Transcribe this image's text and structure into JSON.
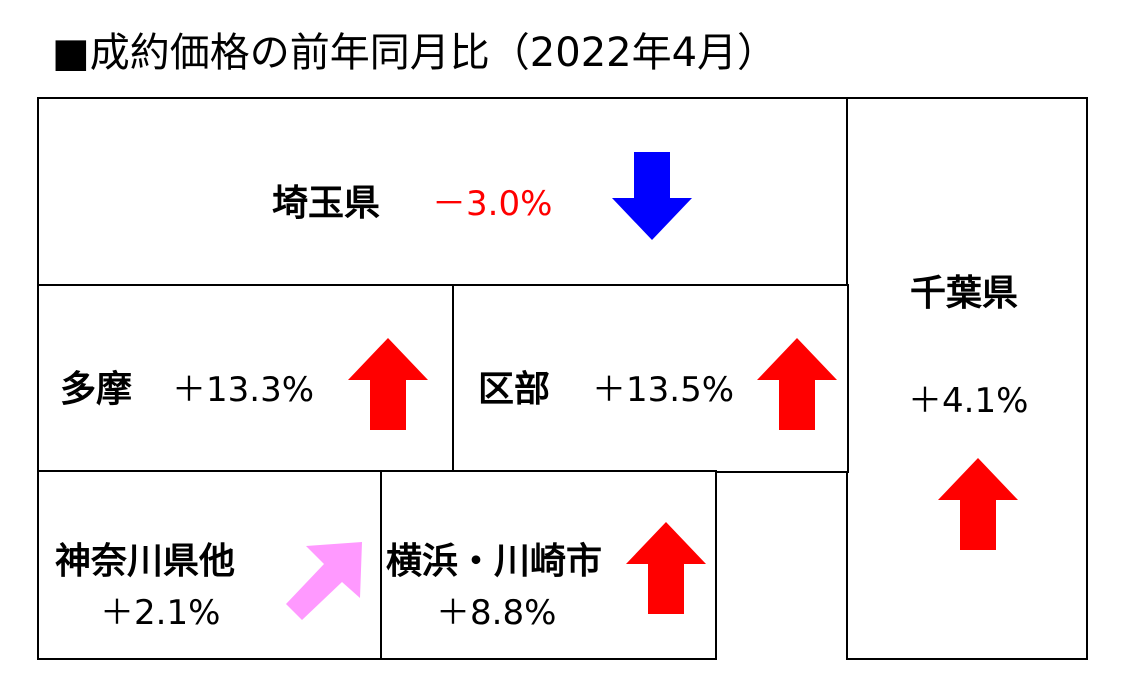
{
  "title": "■成約価格の前年同月比（2022年4月）",
  "colors": {
    "up": "#ff0000",
    "down": "#0000ff",
    "slight_up": "#ff99ff",
    "negative_text": "#ff0000"
  },
  "regions": {
    "saitama": {
      "name": "埼玉県",
      "value": "－3.0%",
      "trend": "down"
    },
    "chiba": {
      "name": "千葉県",
      "value": "＋4.1%",
      "trend": "up"
    },
    "tama": {
      "name": "多摩",
      "value": "＋13.3%",
      "trend": "up"
    },
    "kubu": {
      "name": "区部",
      "value": "＋13.5%",
      "trend": "up"
    },
    "kanagawa": {
      "name": "神奈川県他",
      "value": "＋2.1%",
      "trend": "slight-up"
    },
    "yokohama": {
      "name": "横浜・川崎市",
      "value": "＋8.8%",
      "trend": "up"
    }
  }
}
